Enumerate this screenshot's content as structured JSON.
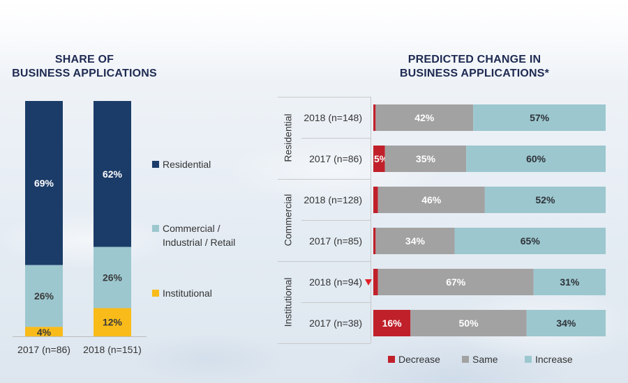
{
  "colors": {
    "residential": "#1b3c68",
    "commercial": "#9cc7cf",
    "institutional": "#f8bb19",
    "decrease": "#c0202a",
    "same": "#a3a2a2",
    "increase": "#9cc7cf",
    "title": "#1e2a52",
    "marker": "#e12026"
  },
  "chart_data": [
    {
      "type": "bar",
      "stacked": true,
      "orientation": "vertical",
      "title": "SHARE OF BUSINESS APPLICATIONS",
      "title_lines": [
        "SHARE OF",
        "BUSINESS APPLICATIONS"
      ],
      "categories": [
        "2017 (n=86)",
        "2018 (n=151)"
      ],
      "series": [
        {
          "name": "Institutional",
          "values": [
            4,
            12
          ],
          "labels": [
            "4%",
            "12%"
          ]
        },
        {
          "name": "Commercial / Industrial / Retail",
          "values": [
            26,
            26
          ],
          "labels": [
            "26%",
            "26%"
          ]
        },
        {
          "name": "Residential",
          "values": [
            69,
            62
          ],
          "labels": [
            "69%",
            "62%"
          ]
        }
      ],
      "legend": {
        "placement": "right",
        "entries": [
          {
            "name": "Residential",
            "lines": [
              "Residential"
            ]
          },
          {
            "name": "Commercial / Industrial / Retail",
            "lines": [
              "Commercial /",
              "Industrial / Retail"
            ]
          },
          {
            "name": "Institutional",
            "lines": [
              "Institutional"
            ]
          }
        ]
      },
      "xlabel": "",
      "ylabel": "",
      "ylim": [
        0,
        100
      ],
      "grid": false
    },
    {
      "type": "bar",
      "stacked": true,
      "orientation": "horizontal",
      "title": "PREDICTED CHANGE IN BUSINESS APPLICATIONS*",
      "title_lines": [
        "PREDICTED CHANGE IN",
        "BUSINESS APPLICATIONS*"
      ],
      "groups": [
        {
          "name": "Residential",
          "rows": [
            {
              "label": "2018 (n=148)",
              "decrease": 1,
              "same": 42,
              "increase": 57,
              "labels": {
                "decrease": "",
                "same": "42%",
                "increase": "57%"
              },
              "marker": false
            },
            {
              "label": "2017 (n=86)",
              "decrease": 5,
              "same": 35,
              "increase": 60,
              "labels": {
                "decrease": "5%",
                "same": "35%",
                "increase": "60%"
              },
              "marker": false
            }
          ]
        },
        {
          "name": "Commercial",
          "rows": [
            {
              "label": "2018 (n=128)",
              "decrease": 2,
              "same": 46,
              "increase": 52,
              "labels": {
                "decrease": "",
                "same": "46%",
                "increase": "52%"
              },
              "marker": false
            },
            {
              "label": "2017 (n=85)",
              "decrease": 1,
              "same": 34,
              "increase": 65,
              "labels": {
                "decrease": "",
                "same": "34%",
                "increase": "65%"
              },
              "marker": false
            }
          ]
        },
        {
          "name": "Institutional",
          "rows": [
            {
              "label": "2018 (n=94)",
              "decrease": 2,
              "same": 67,
              "increase": 31,
              "labels": {
                "decrease": "",
                "same": "67%",
                "increase": "31%"
              },
              "marker": true
            },
            {
              "label": "2017 (n=38)",
              "decrease": 16,
              "same": 50,
              "increase": 34,
              "labels": {
                "decrease": "16%",
                "same": "50%",
                "increase": "34%"
              },
              "marker": false
            }
          ]
        }
      ],
      "legend": {
        "placement": "bottom",
        "entries": [
          "Decrease",
          "Same",
          "Increase"
        ]
      },
      "xlim": [
        0,
        100
      ],
      "grid": false
    }
  ]
}
